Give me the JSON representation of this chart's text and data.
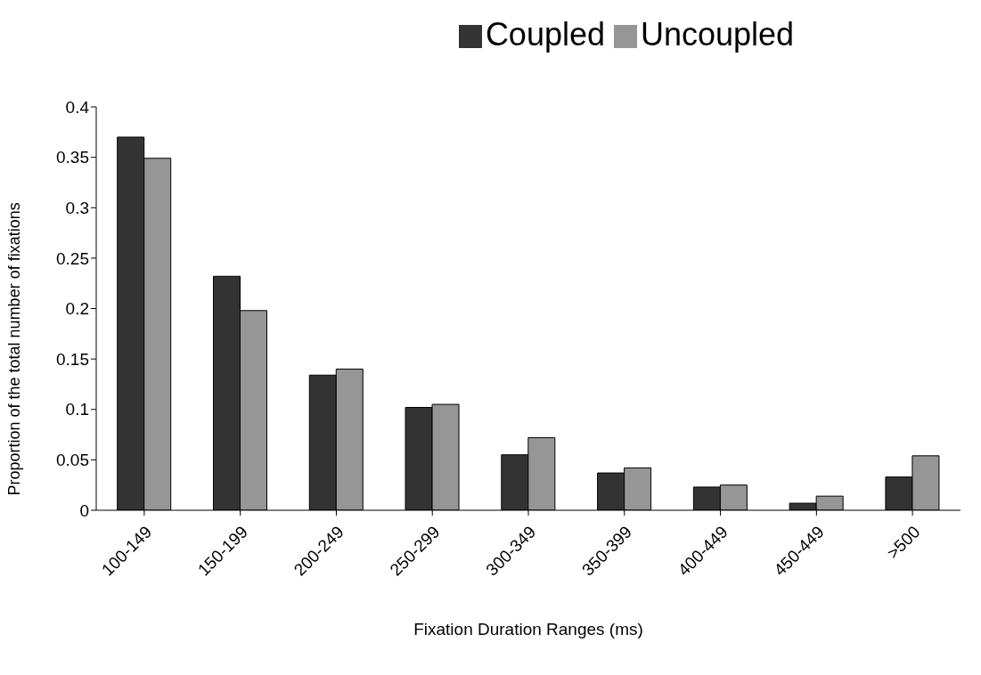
{
  "chart_data": {
    "type": "bar",
    "xlabel": "Fixation Duration Ranges (ms)",
    "ylabel": "Proportion of the total number of fixations",
    "categories": [
      "100-149",
      "150-199",
      "200-249",
      "250-299",
      "300-349",
      "350-399",
      "400-449",
      "450-449",
      ">500"
    ],
    "series": [
      {
        "name": "Coupled",
        "color": "#333333",
        "values": [
          0.37,
          0.232,
          0.134,
          0.102,
          0.055,
          0.037,
          0.023,
          0.007,
          0.033
        ]
      },
      {
        "name": "Uncoupled",
        "color": "#969696",
        "values": [
          0.349,
          0.198,
          0.14,
          0.105,
          0.072,
          0.042,
          0.025,
          0.014,
          0.054
        ]
      }
    ],
    "ylim": [
      0,
      0.4
    ],
    "yticks": [
      0,
      0.05,
      0.1,
      0.15,
      0.2,
      0.25,
      0.3,
      0.35,
      0.4
    ],
    "grid": false,
    "legend": "top"
  }
}
